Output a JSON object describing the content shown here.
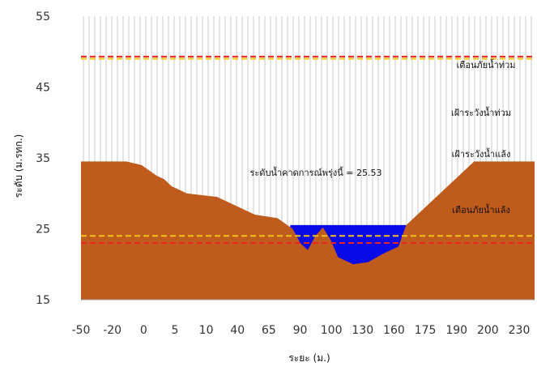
{
  "chart_data": {
    "type": "area",
    "title": "",
    "xlabel": "ระยะ (ม.)",
    "ylabel": "ระดับ (ม.รทก.)",
    "ylim": [
      15,
      55
    ],
    "y_ticks": [
      15,
      25,
      35,
      45,
      55
    ],
    "x_tick_labels": [
      "-50",
      "-20",
      "0",
      "5",
      "10",
      "40",
      "65",
      "90",
      "100",
      "130",
      "160",
      "175",
      "190",
      "200",
      "230"
    ],
    "grid": "vertical",
    "colors": {
      "ground": "#bf5b1c",
      "water": "#0a0ae6",
      "red_line": "#e8261b",
      "yellow_line": "#f2c21a",
      "gridline": "#bdbdbd"
    },
    "ground_profile": {
      "x": [
        -50,
        -40,
        -20,
        -10,
        0,
        5,
        10,
        20,
        40,
        50,
        65,
        80,
        90,
        95,
        100,
        105,
        110,
        115,
        120,
        130,
        140,
        150,
        160,
        165,
        175,
        180,
        190,
        200,
        210,
        230,
        250
      ],
      "y": [
        34.5,
        34.5,
        34.5,
        34,
        32.5,
        32,
        31,
        30,
        29.5,
        28.5,
        27,
        26.5,
        25,
        23,
        22,
        24,
        25.2,
        23.5,
        21,
        20,
        20.3,
        21.5,
        22.5,
        25.5,
        27.5,
        28.5,
        30.5,
        32.5,
        34.5,
        34.5,
        34.5
      ]
    },
    "water_level": 25.53,
    "series": [
      {
        "name": "เตือนภัยน้ำท่วม",
        "type": "hline",
        "y": 49.3,
        "color": "#e8261b"
      },
      {
        "name": "เฝ้าระวังน้ำท่วม",
        "type": "hline",
        "y": 49.0,
        "color": "#f2c21a"
      },
      {
        "name": "เฝ้าระวังน้ำแล้ง",
        "type": "hline",
        "y": 24.0,
        "color": "#f2c21a"
      },
      {
        "name": "เตือนภัยน้ำแล้ง",
        "type": "hline",
        "y": 23.0,
        "color": "#e8261b"
      }
    ],
    "annotations": {
      "water_forecast": "ระดับน้ำคาดการณ์พรุ่งนี้ = 25.53"
    }
  }
}
